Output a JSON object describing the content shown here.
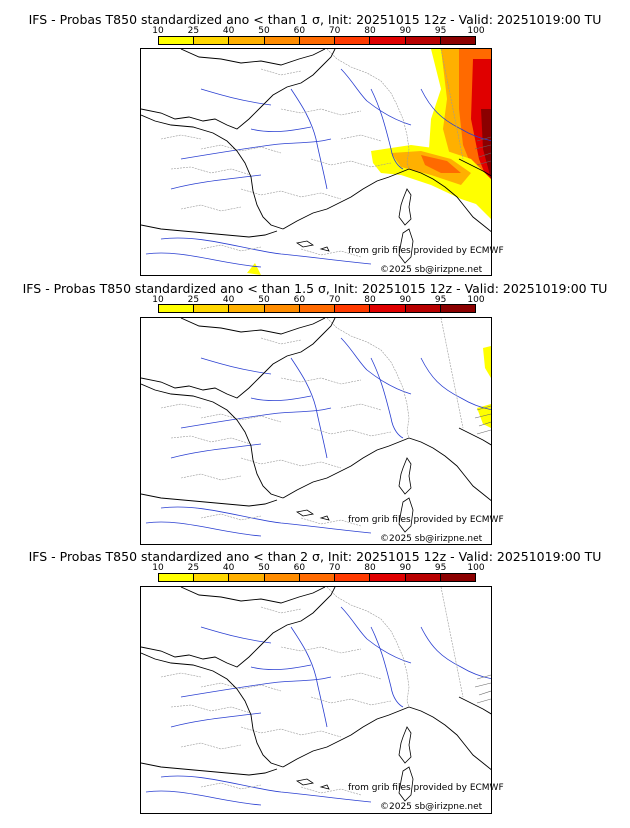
{
  "colorbar": {
    "ticks": [
      "10",
      "25",
      "40",
      "50",
      "60",
      "70",
      "80",
      "90",
      "95",
      "100"
    ],
    "colors": [
      "#ffff00",
      "#ffd700",
      "#ffb000",
      "#ff8c00",
      "#ff6a00",
      "#ff3a00",
      "#e00000",
      "#b80000",
      "#8b0000"
    ]
  },
  "credits": {
    "source": "from grib files provided by ECMWF",
    "copyright": "©2025 sb@irizpne.net"
  },
  "panels": [
    {
      "title": "IFS - Probas T850  standardized ano < than 1 σ, Init: 20251015 12z - Valid: 20251019:00 TU",
      "intensity": 1.0
    },
    {
      "title": "IFS - Probas T850  standardized ano < than 1.5 σ, Init: 20251015 12z - Valid: 20251019:00 TU",
      "intensity": 0.15
    },
    {
      "title": "IFS - Probas T850  standardized ano < than 2 σ, Init: 20251015 12z - Valid: 20251019:00 TU",
      "intensity": 0.0
    }
  ]
}
